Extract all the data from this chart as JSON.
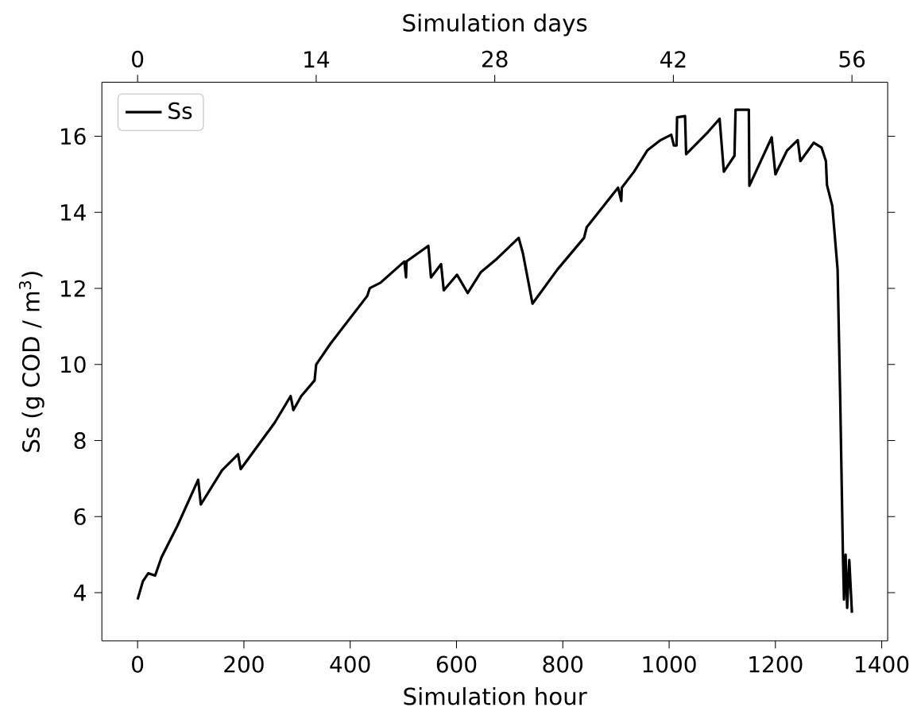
{
  "chart_data": {
    "type": "line",
    "xlabel": "Simulation hour",
    "ylabel": "Ss (g COD / m$^{3}$)",
    "x2label": "Simulation days",
    "xlim": [
      -67.2,
      1411.2
    ],
    "xticks": [
      0,
      200,
      400,
      600,
      800,
      1000,
      1200,
      1400
    ],
    "x2lim": [
      -2.8,
      58.8
    ],
    "x2ticks": [
      0,
      14,
      28,
      42,
      56
    ],
    "ylim": [
      2.73,
      17.42
    ],
    "yticks": [
      4,
      6,
      8,
      10,
      12,
      14,
      16
    ],
    "legend": "top left",
    "grid": false,
    "marker": "none",
    "line_style": "solid",
    "series": [
      {
        "name": "Ss",
        "color": "#000000",
        "x": [
          0,
          10,
          20,
          33,
          45,
          75,
          114,
          119,
          159,
          189,
          194,
          258,
          288,
          293,
          308,
          333,
          336,
          363,
          432,
          437,
          457,
          502,
          505,
          506,
          547,
          552,
          571,
          576,
          601,
          621,
          646,
          676,
          696,
          717,
          725,
          743,
          790,
          840,
          845,
          904,
          910,
          911,
          934,
          959,
          984,
          1004,
          1009,
          1014,
          1015,
          1030,
          1032,
          1073,
          1095,
          1103,
          1123,
          1125,
          1150,
          1151,
          1193,
          1200,
          1222,
          1242,
          1247,
          1272,
          1287,
          1295,
          1297,
          1307,
          1317,
          1322,
          1327,
          1329,
          1332,
          1335,
          1339,
          1344
        ],
        "values": [
          3.82,
          4.3,
          4.51,
          4.45,
          4.93,
          5.76,
          6.97,
          6.32,
          7.22,
          7.64,
          7.25,
          8.47,
          9.17,
          8.8,
          9.17,
          9.58,
          10.0,
          10.55,
          11.8,
          12.01,
          12.15,
          12.71,
          12.29,
          12.71,
          13.12,
          12.29,
          12.64,
          11.95,
          12.36,
          11.88,
          12.43,
          12.78,
          13.05,
          13.33,
          12.92,
          11.6,
          12.5,
          13.33,
          13.61,
          14.65,
          14.3,
          14.65,
          15.07,
          15.63,
          15.9,
          16.04,
          15.76,
          15.76,
          16.5,
          16.53,
          15.53,
          16.11,
          16.46,
          15.07,
          15.49,
          16.7,
          16.7,
          14.7,
          15.97,
          15.0,
          15.63,
          15.9,
          15.35,
          15.83,
          15.7,
          15.35,
          14.72,
          14.17,
          12.5,
          9.03,
          5.0,
          3.82,
          5.0,
          3.6,
          4.86,
          3.47
        ]
      }
    ]
  }
}
